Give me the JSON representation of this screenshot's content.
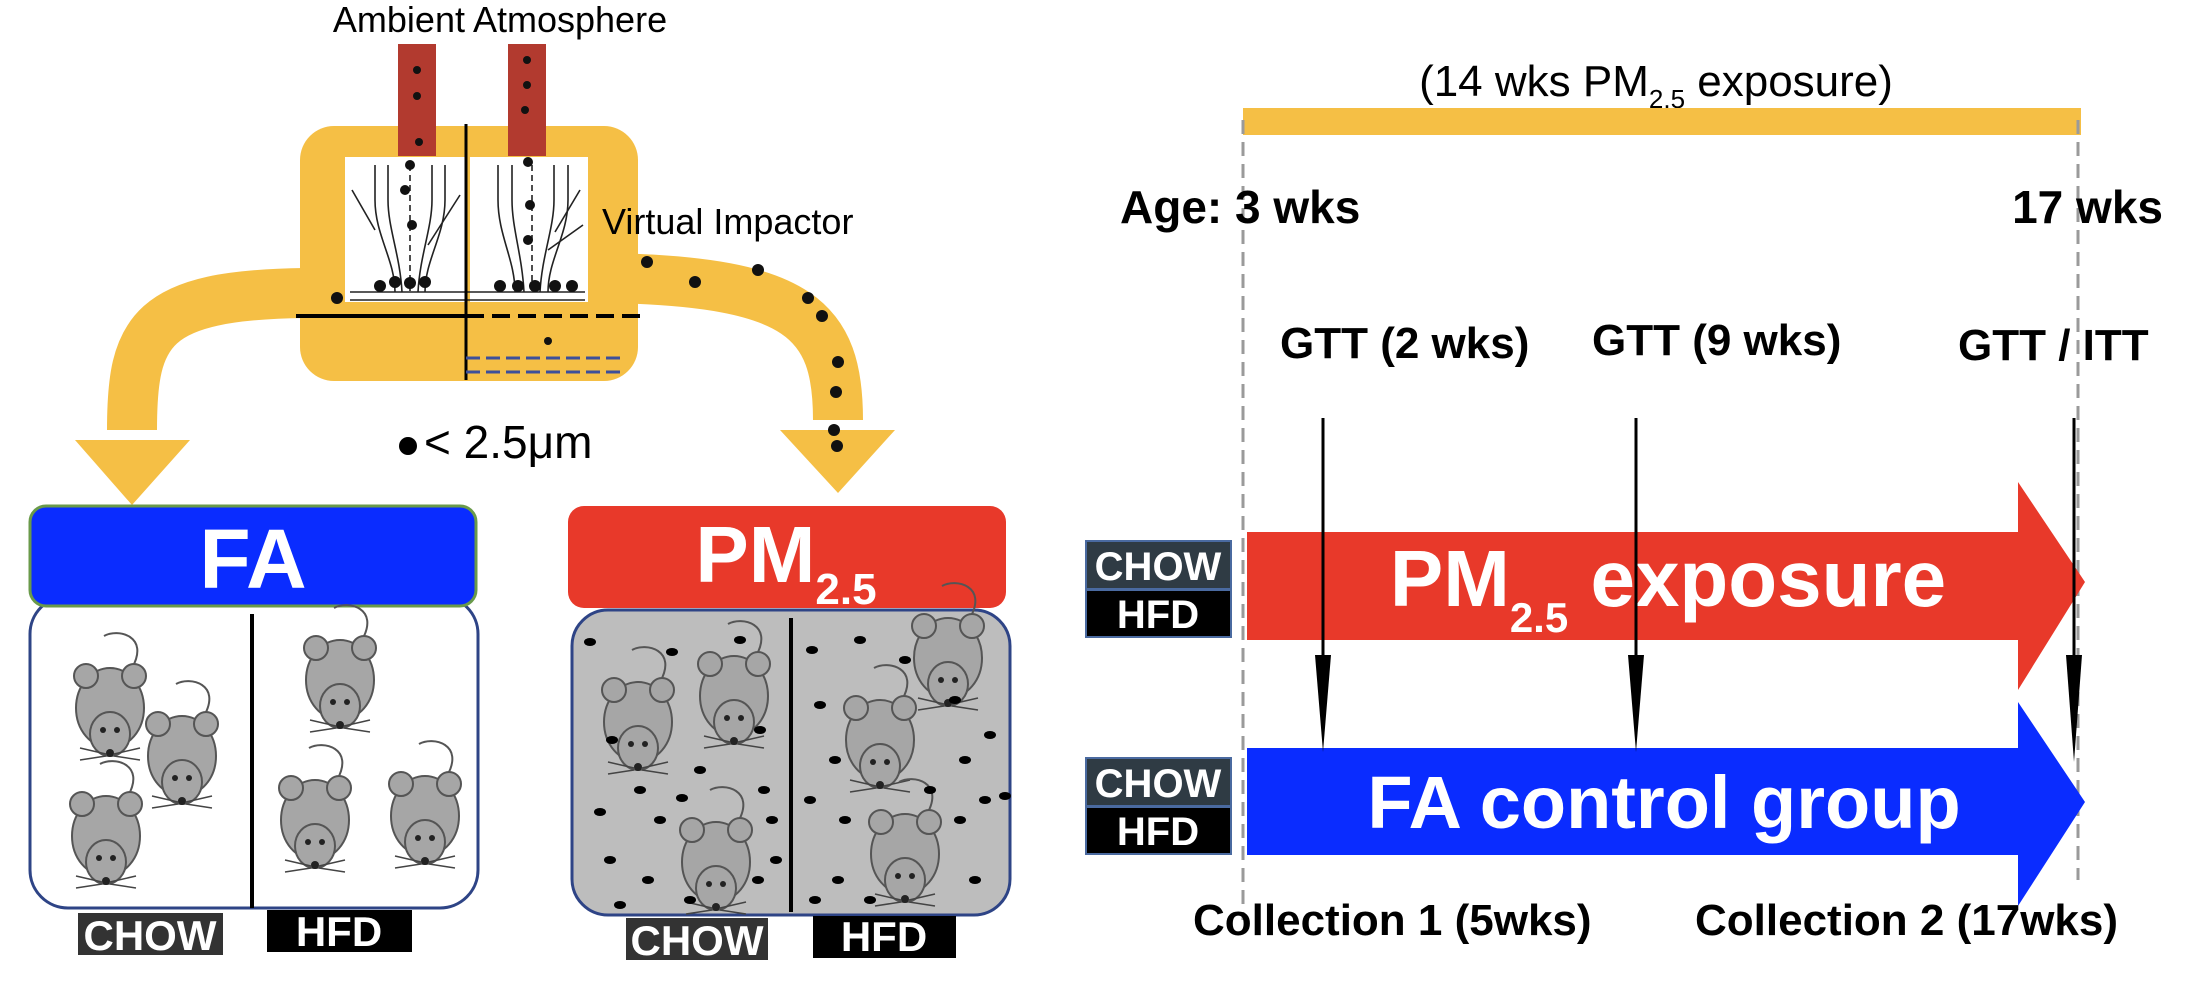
{
  "colors": {
    "yellow": "#f5bf45",
    "fa_blue": "#0a2cff",
    "pm_red": "#e8392a",
    "chimney": "#b23a2f",
    "chamber_gray": "#bdbdbd",
    "black": "#000000"
  },
  "setup": {
    "ambient_label": "Ambient Atmosphere",
    "impactor_label": "Virtual Impactor",
    "particle_legend": "< 2.5μm"
  },
  "chambers": {
    "fa": {
      "title": "FA",
      "left_label": "CHOW",
      "right_label": "HFD",
      "mouse_icon": "mouse-icon"
    },
    "pm": {
      "title_main": "PM",
      "title_sub": "2.5",
      "left_label": "CHOW",
      "right_label": "HFD",
      "mouse_icon": "mouse-icon"
    }
  },
  "timeline": {
    "duration_pre": "(14 wks PM",
    "duration_sub": "2.5",
    "duration_post": " exposure)",
    "age_start": "Age: 3 wks",
    "age_end": "17 wks",
    "tests": [
      {
        "label": "GTT (2 wks)"
      },
      {
        "label": "GTT (9 wks)"
      },
      {
        "label": "GTT / ITT"
      }
    ],
    "pm_arrow": {
      "main": "PM",
      "sub": "2.5",
      "post": " exposure"
    },
    "fa_arrow": {
      "label": "FA control group"
    },
    "diet_tags": {
      "chow": "CHOW",
      "hfd": "HFD"
    },
    "collections": [
      {
        "label": "Collection 1 (5wks)"
      },
      {
        "label": "Collection 2 (17wks)"
      }
    ]
  }
}
